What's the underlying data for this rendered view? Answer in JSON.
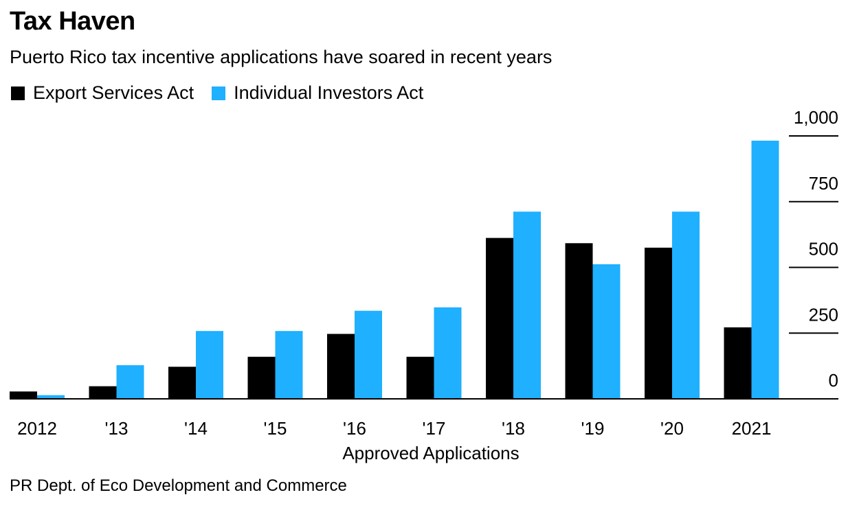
{
  "header": {
    "title": "Tax Haven",
    "subtitle": "Puerto Rico tax incentive applications have soared in recent years"
  },
  "footer": {
    "source": "PR Dept. of Eco Development and Commerce"
  },
  "chart_data": {
    "type": "bar",
    "title": "Tax Haven",
    "subtitle": "Puerto Rico tax incentive applications have soared in recent years",
    "xlabel": "Approved Applications",
    "ylabel": "",
    "categories": [
      "2012",
      "'13",
      "'14",
      "'15",
      "'16",
      "'17",
      "'18",
      "'19",
      "'20",
      "2021"
    ],
    "series": [
      {
        "name": "Export Services Act",
        "color": "#000000",
        "values": [
          28,
          48,
          122,
          160,
          247,
          160,
          612,
          592,
          575,
          272
        ]
      },
      {
        "name": "Individual Investors Act",
        "color": "#1fb0ff",
        "values": [
          14,
          128,
          258,
          258,
          335,
          348,
          712,
          512,
          712,
          982
        ]
      }
    ],
    "ylim": [
      0,
      1000
    ],
    "yticks": [
      0,
      250,
      500,
      750,
      1000
    ],
    "ytick_labels": [
      "0",
      "250",
      "500",
      "750",
      "1,000"
    ],
    "y_axis_position": "right",
    "legend_position": "top-left",
    "grid": false
  }
}
